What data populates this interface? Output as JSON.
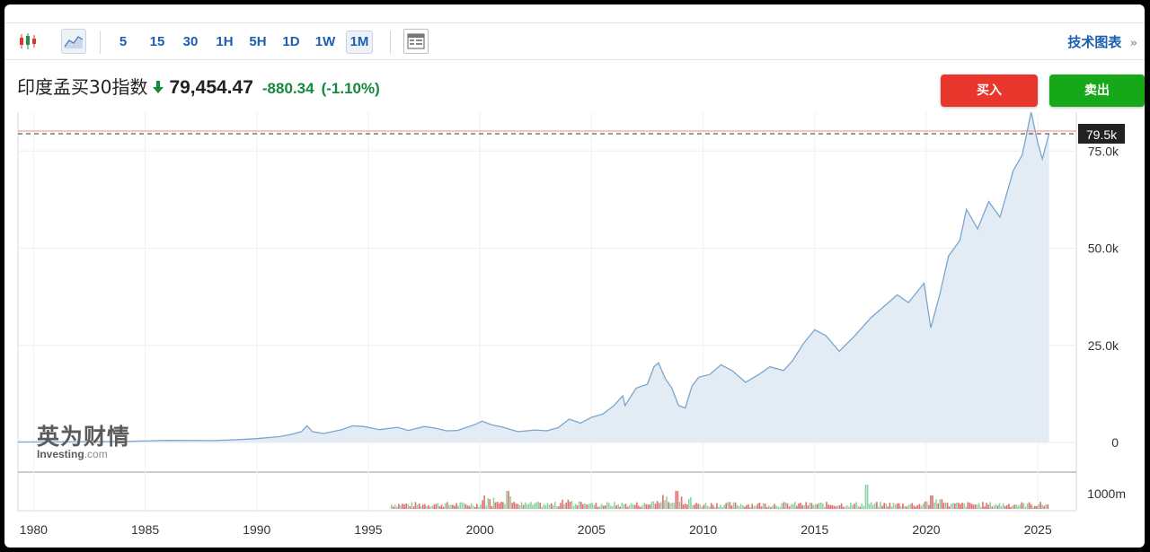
{
  "toolbar": {
    "timeframes": [
      "5",
      "15",
      "30",
      "1H",
      "5H",
      "1D",
      "1W",
      "1M"
    ],
    "active_timeframe": "1M",
    "tech_chart_label": "技术图表",
    "tech_chart_arrow": "»"
  },
  "quote": {
    "name": "印度孟买30指数",
    "price": "79,454.47",
    "change": "-880.34",
    "change_pct": "(-1.10%)",
    "direction": "down"
  },
  "actions": {
    "buy_label": "买入",
    "sell_label": "卖出"
  },
  "watermark": {
    "cn": "英为财情",
    "en": "Investing",
    "en_suffix": ".com"
  },
  "colors": {
    "line": "#7aa6d0",
    "area": "#e3ebf5",
    "up_bar": "#8fd1a4",
    "down_bar": "#e26d6d",
    "change": "#148a3c",
    "buy": "#e8362c",
    "sell": "#16a818",
    "price_tag_bg": "#222222",
    "ref_line": "#e58a82"
  },
  "chart_data": {
    "type": "area",
    "title": "",
    "xlabel": "",
    "ylabel": "",
    "x_ticks": [
      "1980",
      "1985",
      "1990",
      "1995",
      "2000",
      "2005",
      "2010",
      "2015",
      "2020",
      "2025"
    ],
    "y_ticks": [
      "0",
      "25.0k",
      "50.0k",
      "75.0k"
    ],
    "ylim": [
      0,
      85000
    ],
    "xlim": [
      1979.3,
      2026.2
    ],
    "current_value_label": "79.5k",
    "current_value": 79454.47,
    "series": [
      {
        "points": [
          [
            1979.3,
            110
          ],
          [
            1980,
            130
          ],
          [
            1982,
            200
          ],
          [
            1984,
            250
          ],
          [
            1986,
            550
          ],
          [
            1988,
            480
          ],
          [
            1989,
            700
          ],
          [
            1990,
            1000
          ],
          [
            1991,
            1500
          ],
          [
            1991.5,
            2000
          ],
          [
            1992.0,
            2800
          ],
          [
            1992.25,
            4300
          ],
          [
            1992.5,
            2800
          ],
          [
            1993,
            2300
          ],
          [
            1993.8,
            3300
          ],
          [
            1994.3,
            4300
          ],
          [
            1994.8,
            4100
          ],
          [
            1995.5,
            3300
          ],
          [
            1996.3,
            3900
          ],
          [
            1996.8,
            3100
          ],
          [
            1997.5,
            4100
          ],
          [
            1998.0,
            3700
          ],
          [
            1998.5,
            3000
          ],
          [
            1999.0,
            3100
          ],
          [
            1999.8,
            4700
          ],
          [
            2000.1,
            5500
          ],
          [
            2000.5,
            4600
          ],
          [
            2001.0,
            4000
          ],
          [
            2001.7,
            2800
          ],
          [
            2002.5,
            3200
          ],
          [
            2003.0,
            3000
          ],
          [
            2003.5,
            3800
          ],
          [
            2004.0,
            6000
          ],
          [
            2004.5,
            5000
          ],
          [
            2005.0,
            6500
          ],
          [
            2005.5,
            7300
          ],
          [
            2006.0,
            9500
          ],
          [
            2006.4,
            12000
          ],
          [
            2006.5,
            9500
          ],
          [
            2007.0,
            14000
          ],
          [
            2007.5,
            15000
          ],
          [
            2007.8,
            19500
          ],
          [
            2008.0,
            20500
          ],
          [
            2008.3,
            16500
          ],
          [
            2008.6,
            14000
          ],
          [
            2008.9,
            9500
          ],
          [
            2009.2,
            8900
          ],
          [
            2009.5,
            14500
          ],
          [
            2009.8,
            16800
          ],
          [
            2010.3,
            17500
          ],
          [
            2010.8,
            20000
          ],
          [
            2011.3,
            18500
          ],
          [
            2011.9,
            15500
          ],
          [
            2012.5,
            17500
          ],
          [
            2013.0,
            19500
          ],
          [
            2013.6,
            18500
          ],
          [
            2014.0,
            21000
          ],
          [
            2014.5,
            25500
          ],
          [
            2015.0,
            29000
          ],
          [
            2015.5,
            27500
          ],
          [
            2016.1,
            23500
          ],
          [
            2016.8,
            27500
          ],
          [
            2017.5,
            32000
          ],
          [
            2018.0,
            34500
          ],
          [
            2018.7,
            38000
          ],
          [
            2019.2,
            36000
          ],
          [
            2019.9,
            41000
          ],
          [
            2020.2,
            29500
          ],
          [
            2020.6,
            38000
          ],
          [
            2021.0,
            48000
          ],
          [
            2021.5,
            52000
          ],
          [
            2021.8,
            60000
          ],
          [
            2022.3,
            55000
          ],
          [
            2022.8,
            62000
          ],
          [
            2023.3,
            58000
          ],
          [
            2023.9,
            70000
          ],
          [
            2024.3,
            74000
          ],
          [
            2024.7,
            85000
          ],
          [
            2025.0,
            77000
          ],
          [
            2025.2,
            73000
          ],
          [
            2025.5,
            79454
          ]
        ]
      }
    ],
    "volume": {
      "label": "1000m",
      "note": "monthly volume bars from 1996 onward"
    }
  }
}
